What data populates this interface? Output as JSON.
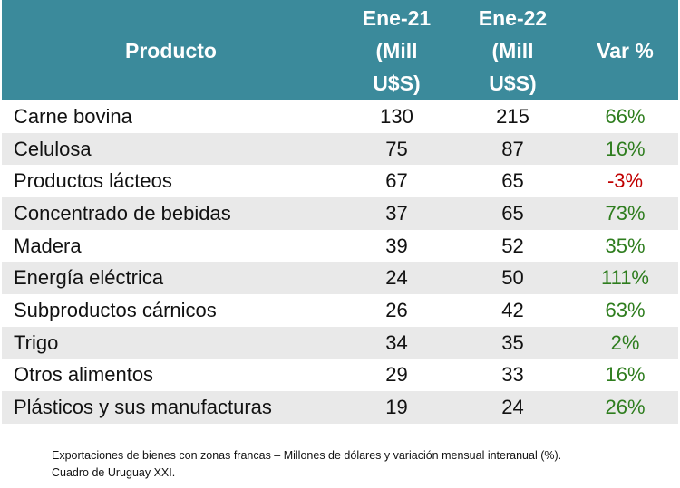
{
  "table": {
    "headers": [
      [
        "Producto"
      ],
      [
        "Ene-21",
        "(Mill",
        "U$S)"
      ],
      [
        "Ene-22",
        "(Mill",
        "U$S)"
      ],
      [
        "Var %"
      ]
    ],
    "rows": [
      [
        "Carne bovina",
        130,
        215,
        "66%"
      ],
      [
        "Celulosa",
        75,
        87,
        "16%"
      ],
      [
        "Productos lácteos",
        67,
        65,
        "-3%"
      ],
      [
        "Concentrado de bebidas",
        37,
        65,
        "73%"
      ],
      [
        "Madera",
        39,
        52,
        "35%"
      ],
      [
        "Energía eléctrica",
        24,
        50,
        "111%"
      ],
      [
        "Subproductos cárnicos",
        26,
        42,
        "63%"
      ],
      [
        "Trigo",
        34,
        35,
        "2%"
      ],
      [
        "Otros alimentos",
        29,
        33,
        "16%"
      ],
      [
        "Plásticos y sus manufacturas",
        19,
        24,
        "26%"
      ]
    ]
  },
  "footnote": [
    "Exportaciones de bienes con zonas francas –  Millones de  dólares y variación mensual interanual (%).",
    "Cuadro de Uruguay XXI."
  ]
}
